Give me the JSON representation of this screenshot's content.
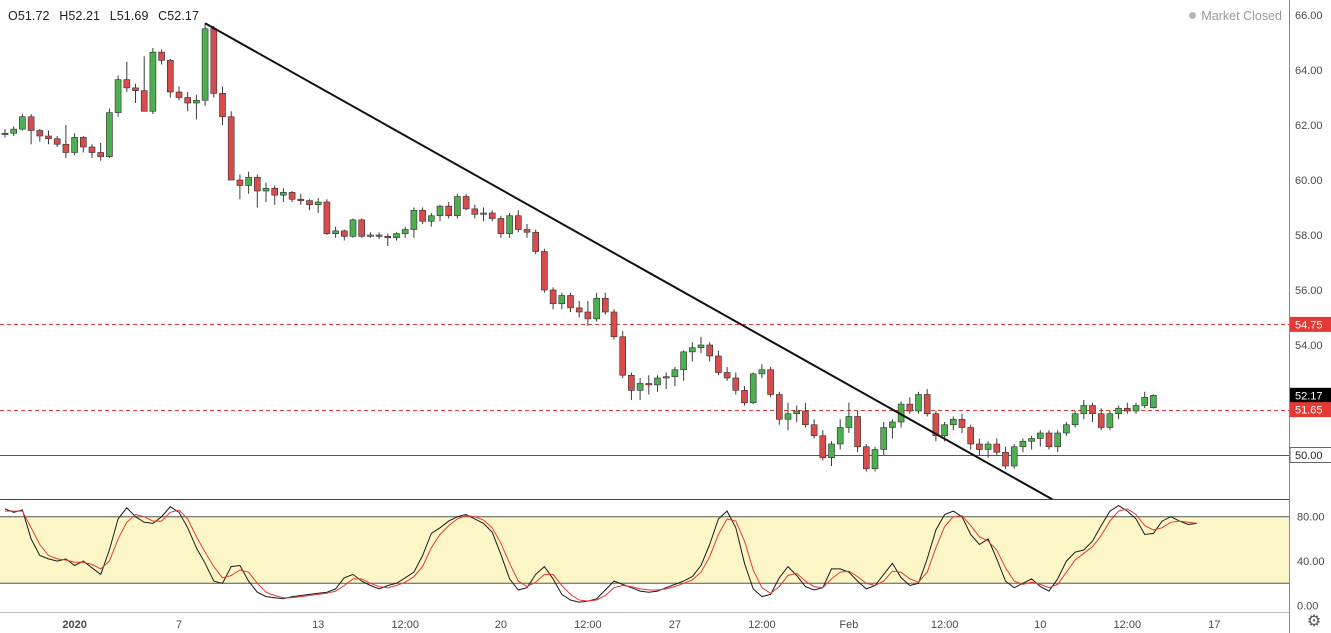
{
  "header": {
    "open_label": "O51.72",
    "high_label": "H52.21",
    "low_label": "L51.69",
    "close_label": "C52.17",
    "market_status": "Market Closed"
  },
  "colors": {
    "up": "#4caf50",
    "down": "#d94c4c",
    "wick": "#3a3a3a",
    "trendline": "#111111",
    "level_red": "#e53935",
    "level_gray": "#555555",
    "osc_band": "#fdf7c8",
    "osc_k": "#1a1a1a",
    "osc_d": "#e53935"
  },
  "icons": {
    "settings": "gear-icon",
    "status_dot": "dot-icon"
  },
  "chart_data": [
    {
      "type": "candlestick",
      "ylim": [
        48,
        66
      ],
      "y_ticks": [
        "66.00",
        "64.00",
        "62.00",
        "60.00",
        "58.00",
        "56.00",
        "54.00",
        "52.00",
        "50.00"
      ],
      "x_ticks": [
        "2020",
        "7",
        "13",
        "12:00",
        "20",
        "12:00",
        "27",
        "12:00",
        "Feb",
        "12:00",
        "10",
        "12:00",
        "17"
      ],
      "price_tags": [
        {
          "label": "54.75",
          "value": 54.75,
          "color": "#e53935"
        },
        {
          "label": "52.17",
          "value": 52.17,
          "color": "#000000"
        },
        {
          "label": "51.65",
          "value": 51.65,
          "color": "#e53935"
        },
        {
          "label": "50.00",
          "value": 50.0,
          "color": "#ffffff"
        }
      ],
      "horizontal_levels": [
        {
          "value": 54.75,
          "style": "dashed",
          "color": "#e53935"
        },
        {
          "value": 51.65,
          "style": "dashed",
          "color": "#e53935"
        },
        {
          "value": 50.0,
          "style": "solid",
          "color": "#555555"
        }
      ],
      "trendline": {
        "from_index": 23,
        "from_value": 65.7,
        "to_index": 122,
        "to_value": 48.1
      },
      "ohlc": [
        [
          61.65,
          61.85,
          61.55,
          61.7
        ],
        [
          61.7,
          61.95,
          61.6,
          61.85
        ],
        [
          61.85,
          62.4,
          61.8,
          62.3
        ],
        [
          62.3,
          62.4,
          61.3,
          61.8
        ],
        [
          61.8,
          61.85,
          61.4,
          61.6
        ],
        [
          61.6,
          61.8,
          61.3,
          61.5
        ],
        [
          61.5,
          61.6,
          61.2,
          61.3
        ],
        [
          61.3,
          62.0,
          60.8,
          61.0
        ],
        [
          61.0,
          61.7,
          60.9,
          61.55
        ],
        [
          61.55,
          61.6,
          61.0,
          61.2
        ],
        [
          61.2,
          61.3,
          60.8,
          61.0
        ],
        [
          61.0,
          61.35,
          60.7,
          60.85
        ],
        [
          60.85,
          62.6,
          60.8,
          62.45
        ],
        [
          62.45,
          63.8,
          62.3,
          63.65
        ],
        [
          63.65,
          64.3,
          63.2,
          63.35
        ],
        [
          63.35,
          63.5,
          62.8,
          63.25
        ],
        [
          63.25,
          64.5,
          62.6,
          62.5
        ],
        [
          62.5,
          64.8,
          62.4,
          64.65
        ],
        [
          64.65,
          64.75,
          64.2,
          64.35
        ],
        [
          64.35,
          64.4,
          63.0,
          63.2
        ],
        [
          63.2,
          63.4,
          62.9,
          63.0
        ],
        [
          63.0,
          63.2,
          62.5,
          62.8
        ],
        [
          62.8,
          63.1,
          62.2,
          62.9
        ],
        [
          62.9,
          65.7,
          62.7,
          65.5
        ],
        [
          65.5,
          65.6,
          63.0,
          63.15
        ],
        [
          63.15,
          63.4,
          62.0,
          62.3
        ],
        [
          62.3,
          62.5,
          60.0,
          60.0
        ],
        [
          60.0,
          60.2,
          59.3,
          59.8
        ],
        [
          59.8,
          60.3,
          59.5,
          60.1
        ],
        [
          60.1,
          60.2,
          59.0,
          59.6
        ],
        [
          59.6,
          59.9,
          59.2,
          59.7
        ],
        [
          59.7,
          59.8,
          59.1,
          59.45
        ],
        [
          59.45,
          59.7,
          59.2,
          59.55
        ],
        [
          59.55,
          59.6,
          59.2,
          59.3
        ],
        [
          59.3,
          59.5,
          59.1,
          59.25
        ],
        [
          59.25,
          59.3,
          58.9,
          59.1
        ],
        [
          59.1,
          59.35,
          58.8,
          59.2
        ],
        [
          59.2,
          59.3,
          58.0,
          58.05
        ],
        [
          58.05,
          58.3,
          57.9,
          58.15
        ],
        [
          58.15,
          58.2,
          57.8,
          57.95
        ],
        [
          57.95,
          58.6,
          57.9,
          58.55
        ],
        [
          58.55,
          58.6,
          57.9,
          57.95
        ],
        [
          57.95,
          58.1,
          57.9,
          58.0
        ],
        [
          58.0,
          58.1,
          57.85,
          57.95
        ],
        [
          57.95,
          58.05,
          57.6,
          57.9
        ],
        [
          57.9,
          58.1,
          57.8,
          58.05
        ],
        [
          58.05,
          58.3,
          57.9,
          58.2
        ],
        [
          58.2,
          59.0,
          57.9,
          58.9
        ],
        [
          58.9,
          59.0,
          58.4,
          58.5
        ],
        [
          58.5,
          58.8,
          58.3,
          58.7
        ],
        [
          58.7,
          59.1,
          58.5,
          59.05
        ],
        [
          59.05,
          59.2,
          58.6,
          58.7
        ],
        [
          58.7,
          59.5,
          58.6,
          59.4
        ],
        [
          59.4,
          59.5,
          58.9,
          58.95
        ],
        [
          58.95,
          59.1,
          58.6,
          58.75
        ],
        [
          58.75,
          59.0,
          58.5,
          58.8
        ],
        [
          58.8,
          58.9,
          58.5,
          58.6
        ],
        [
          58.6,
          58.7,
          57.9,
          58.05
        ],
        [
          58.05,
          58.8,
          57.9,
          58.7
        ],
        [
          58.7,
          58.9,
          58.1,
          58.2
        ],
        [
          58.2,
          58.4,
          57.9,
          58.1
        ],
        [
          58.1,
          58.2,
          57.3,
          57.4
        ],
        [
          57.4,
          57.5,
          55.9,
          56.0
        ],
        [
          56.0,
          56.1,
          55.3,
          55.5
        ],
        [
          55.5,
          55.9,
          55.3,
          55.8
        ],
        [
          55.8,
          55.9,
          55.2,
          55.35
        ],
        [
          55.35,
          55.6,
          55.0,
          55.2
        ],
        [
          55.2,
          55.6,
          54.7,
          54.95
        ],
        [
          54.95,
          55.9,
          54.85,
          55.7
        ],
        [
          55.7,
          55.9,
          55.1,
          55.2
        ],
        [
          55.2,
          55.3,
          54.2,
          54.3
        ],
        [
          54.3,
          54.5,
          52.8,
          52.9
        ],
        [
          52.9,
          53.0,
          52.0,
          52.35
        ],
        [
          52.35,
          52.8,
          52.0,
          52.6
        ],
        [
          52.6,
          52.9,
          52.2,
          52.55
        ],
        [
          52.55,
          52.9,
          52.3,
          52.8
        ],
        [
          52.8,
          53.0,
          52.4,
          52.85
        ],
        [
          52.85,
          53.2,
          52.5,
          53.1
        ],
        [
          53.1,
          53.8,
          52.7,
          53.75
        ],
        [
          53.75,
          54.1,
          53.4,
          53.9
        ],
        [
          53.9,
          54.3,
          53.7,
          54.0
        ],
        [
          54.0,
          54.1,
          53.4,
          53.6
        ],
        [
          53.6,
          53.8,
          52.9,
          53.0
        ],
        [
          53.0,
          53.2,
          52.7,
          52.8
        ],
        [
          52.8,
          53.0,
          52.2,
          52.35
        ],
        [
          52.35,
          52.5,
          51.8,
          51.9
        ],
        [
          51.9,
          53.0,
          51.85,
          52.95
        ],
        [
          52.95,
          53.3,
          52.8,
          53.1
        ],
        [
          53.1,
          53.2,
          52.1,
          52.2
        ],
        [
          52.2,
          52.3,
          51.1,
          51.3
        ],
        [
          51.3,
          51.9,
          50.9,
          51.5
        ],
        [
          51.5,
          51.8,
          51.2,
          51.6
        ],
        [
          51.6,
          51.9,
          51.0,
          51.1
        ],
        [
          51.1,
          51.3,
          50.6,
          50.7
        ],
        [
          50.7,
          50.9,
          49.8,
          49.9
        ],
        [
          49.9,
          50.5,
          49.6,
          50.4
        ],
        [
          50.4,
          51.3,
          50.2,
          51.0
        ],
        [
          51.0,
          51.9,
          50.8,
          51.4
        ],
        [
          51.4,
          51.6,
          50.1,
          50.3
        ],
        [
          50.3,
          50.4,
          49.4,
          49.5
        ],
        [
          49.5,
          50.3,
          49.4,
          50.2
        ],
        [
          50.2,
          51.2,
          50.0,
          51.0
        ],
        [
          51.0,
          51.3,
          50.6,
          51.2
        ],
        [
          51.2,
          51.95,
          51.0,
          51.85
        ],
        [
          51.85,
          52.1,
          51.5,
          51.6
        ],
        [
          51.6,
          52.3,
          51.5,
          52.2
        ],
        [
          52.2,
          52.4,
          51.4,
          51.5
        ],
        [
          51.5,
          51.6,
          50.5,
          50.7
        ],
        [
          50.7,
          51.2,
          50.5,
          51.1
        ],
        [
          51.1,
          51.4,
          50.9,
          51.3
        ],
        [
          51.3,
          51.5,
          50.8,
          51.0
        ],
        [
          51.0,
          51.1,
          50.2,
          50.4
        ],
        [
          50.4,
          50.6,
          50.0,
          50.2
        ],
        [
          50.2,
          50.5,
          49.9,
          50.4
        ],
        [
          50.4,
          50.6,
          50.0,
          50.1
        ],
        [
          50.1,
          50.3,
          49.5,
          49.6
        ],
        [
          49.6,
          50.4,
          49.5,
          50.3
        ],
        [
          50.3,
          50.6,
          50.1,
          50.5
        ],
        [
          50.5,
          50.7,
          50.2,
          50.6
        ],
        [
          50.6,
          50.9,
          50.3,
          50.8
        ],
        [
          50.8,
          50.9,
          50.2,
          50.3
        ],
        [
          50.3,
          50.9,
          50.1,
          50.8
        ],
        [
          50.8,
          51.2,
          50.7,
          51.1
        ],
        [
          51.1,
          51.6,
          51.0,
          51.5
        ],
        [
          51.5,
          52.0,
          51.3,
          51.8
        ],
        [
          51.8,
          51.9,
          51.2,
          51.5
        ],
        [
          51.5,
          51.7,
          50.9,
          51.0
        ],
        [
          51.0,
          51.6,
          50.9,
          51.5
        ],
        [
          51.5,
          51.8,
          51.3,
          51.7
        ],
        [
          51.7,
          51.9,
          51.5,
          51.6
        ],
        [
          51.6,
          51.9,
          51.5,
          51.8
        ],
        [
          51.8,
          52.3,
          51.7,
          52.1
        ],
        [
          51.72,
          52.21,
          51.69,
          52.17
        ]
      ]
    },
    {
      "type": "line",
      "ylim": [
        0,
        100
      ],
      "y_ticks": [
        "80.00",
        "40.00",
        "0.00"
      ],
      "band": [
        20,
        80
      ],
      "series": [
        {
          "values": [
            87,
            84,
            86,
            60,
            45,
            42,
            40,
            42,
            36,
            40,
            34,
            28,
            50,
            78,
            88,
            80,
            75,
            74,
            80,
            89,
            84,
            70,
            52,
            38,
            22,
            20,
            35,
            36,
            22,
            12,
            8,
            7,
            6,
            8,
            9,
            10,
            11,
            12,
            15,
            25,
            28,
            22,
            18,
            15,
            18,
            20,
            25,
            30,
            45,
            65,
            70,
            76,
            80,
            82,
            78,
            74,
            66,
            46,
            24,
            14,
            16,
            28,
            35,
            24,
            10,
            5,
            3,
            4,
            6,
            14,
            22,
            19,
            16,
            13,
            12,
            13,
            16,
            19,
            22,
            26,
            36,
            55,
            78,
            85,
            70,
            38,
            15,
            8,
            10,
            25,
            35,
            27,
            17,
            14,
            16,
            33,
            33,
            30,
            22,
            15,
            18,
            28,
            38,
            25,
            18,
            20,
            42,
            68,
            82,
            85,
            80,
            64,
            55,
            60,
            42,
            22,
            16,
            20,
            24,
            17,
            13,
            24,
            40,
            48,
            50,
            58,
            72,
            85,
            90,
            85,
            78,
            64,
            65,
            76,
            80,
            76,
            73,
            74
          ]
        },
        {
          "values": [
            85,
            85,
            85,
            70,
            55,
            45,
            42,
            41,
            39,
            39,
            37,
            33,
            40,
            60,
            75,
            82,
            80,
            76,
            76,
            84,
            86,
            78,
            62,
            48,
            35,
            25,
            27,
            32,
            30,
            20,
            12,
            9,
            7,
            7,
            8,
            9,
            10,
            11,
            13,
            18,
            24,
            24,
            20,
            17,
            16,
            18,
            21,
            26,
            35,
            52,
            64,
            72,
            78,
            81,
            80,
            77,
            70,
            56,
            38,
            22,
            17,
            21,
            28,
            28,
            18,
            10,
            5,
            4,
            5,
            9,
            16,
            18,
            17,
            15,
            14,
            14,
            15,
            17,
            20,
            23,
            30,
            44,
            64,
            78,
            76,
            58,
            32,
            16,
            11,
            17,
            27,
            29,
            22,
            17,
            16,
            24,
            30,
            31,
            26,
            20,
            18,
            22,
            31,
            30,
            24,
            21,
            30,
            52,
            71,
            80,
            81,
            72,
            62,
            58,
            50,
            34,
            22,
            19,
            21,
            19,
            16,
            19,
            30,
            41,
            47,
            53,
            63,
            76,
            85,
            87,
            82,
            72,
            68,
            70,
            75,
            76,
            75,
            74
          ]
        }
      ]
    }
  ]
}
